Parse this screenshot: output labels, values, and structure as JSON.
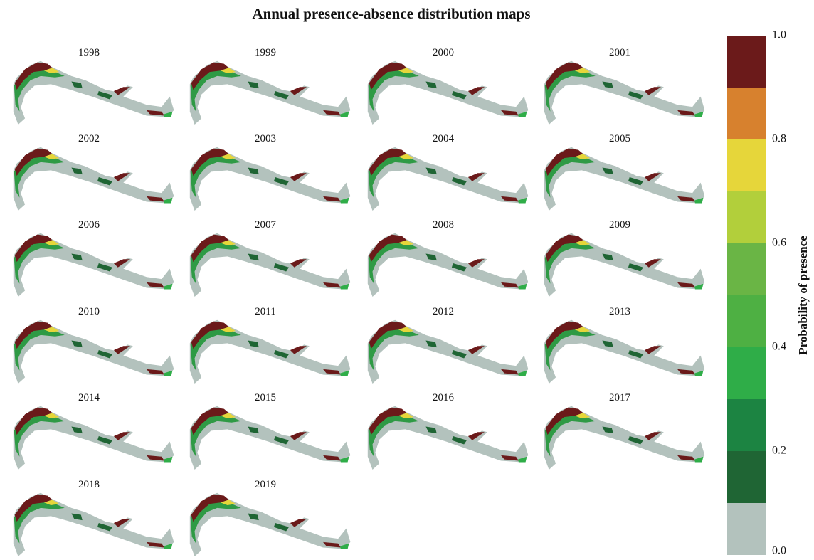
{
  "title": "Annual presence-absence distribution maps",
  "years": [
    "1998",
    "1999",
    "2000",
    "2001",
    "2002",
    "2003",
    "2004",
    "2005",
    "2006",
    "2007",
    "2008",
    "2009",
    "2010",
    "2011",
    "2012",
    "2013",
    "2014",
    "2015",
    "2016",
    "2017",
    "2018",
    "2019"
  ],
  "colorbar": {
    "label": "Probability of presence",
    "lim": [
      {
        "value": 0,
        "label": "0.0"
      },
      {
        "value": 1,
        "label": "1.0"
      }
    ],
    "ticks": [
      {
        "value": 0,
        "label": "0.0"
      },
      0.2,
      0.4,
      0.6,
      0.8,
      {
        "value": 1,
        "label": "1.0"
      }
    ],
    "bins": [
      0,
      0.1,
      0.2,
      0.3,
      0.4,
      0.5,
      0.6,
      0.7,
      0.8,
      0.9,
      1
    ],
    "colors": [
      "#b3c2bd",
      "#1f6534",
      "#1c8442",
      "#2fad48",
      "#4eb043",
      "#6ab545",
      "#b2cf3b",
      "#e6d63a",
      "#d7812e",
      "#6b1a1a"
    ]
  }
}
